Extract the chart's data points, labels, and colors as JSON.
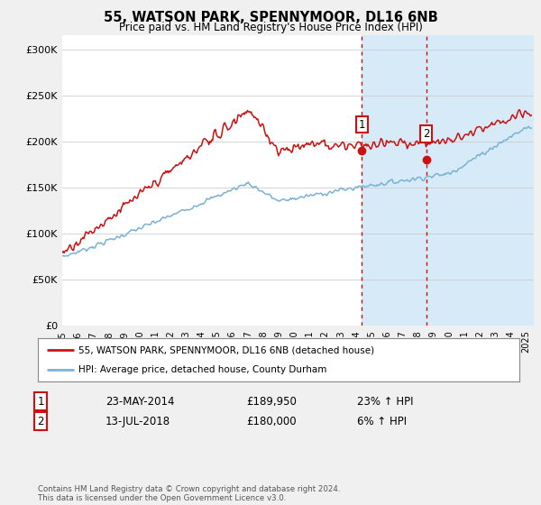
{
  "title_line1": "55, WATSON PARK, SPENNYMOOR, DL16 6NB",
  "title_line2": "Price paid vs. HM Land Registry's House Price Index (HPI)",
  "ylabel_ticks": [
    "£0",
    "£50K",
    "£100K",
    "£150K",
    "£200K",
    "£250K",
    "£300K"
  ],
  "ytick_values": [
    0,
    50000,
    100000,
    150000,
    200000,
    250000,
    300000
  ],
  "ylim": [
    0,
    315000
  ],
  "xlim_start": 1995.0,
  "xlim_end": 2025.5,
  "hpi_color": "#7ab3d4",
  "price_color": "#cc1111",
  "shaded_color": "#d6eaf8",
  "shaded_start": 2014.38,
  "shaded_end": 2025.5,
  "vline1_x": 2014.38,
  "vline2_x": 2018.53,
  "marker1_x": 2014.38,
  "marker1_y": 189950,
  "marker2_x": 2018.53,
  "marker2_y": 180000,
  "legend_line1": "55, WATSON PARK, SPENNYMOOR, DL16 6NB (detached house)",
  "legend_line2": "HPI: Average price, detached house, County Durham",
  "annotation1_num": "1",
  "annotation1_date": "23-MAY-2014",
  "annotation1_price": "£189,950",
  "annotation1_hpi": "23% ↑ HPI",
  "annotation2_num": "2",
  "annotation2_date": "13-JUL-2018",
  "annotation2_price": "£180,000",
  "annotation2_hpi": "6% ↑ HPI",
  "footer": "Contains HM Land Registry data © Crown copyright and database right 2024.\nThis data is licensed under the Open Government Licence v3.0.",
  "bg_color": "#f0f0f0",
  "plot_bg_color": "#ffffff"
}
